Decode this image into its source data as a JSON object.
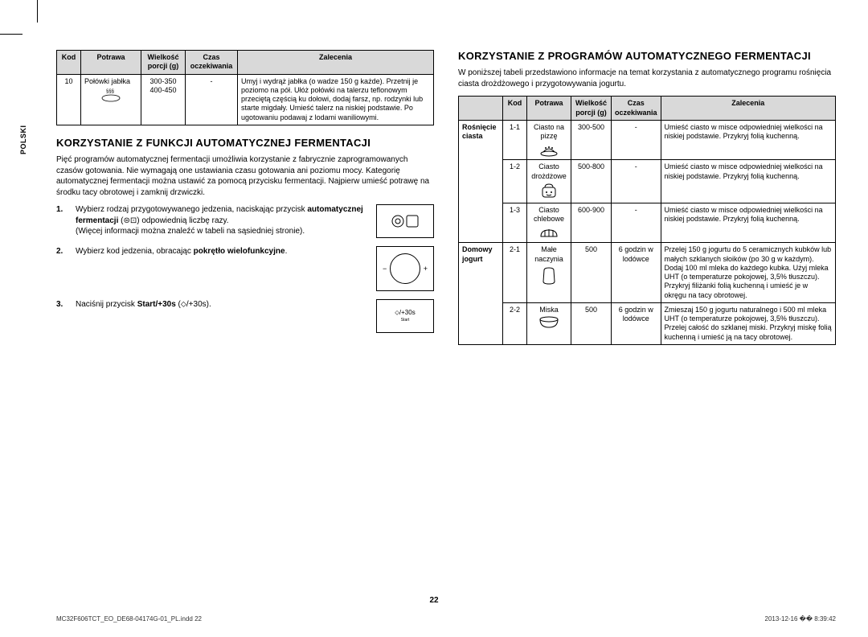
{
  "side_label": "POLSKI",
  "page_number": "22",
  "footer_left": "MC32F606TCT_EO_DE68-04174G-01_PL.indd   22",
  "footer_right": "2013-12-16   �� 8:39:42",
  "left": {
    "table1": {
      "headers": [
        "Kod",
        "Potrawa",
        "Wielkość porcji (g)",
        "Czas oczekiwania",
        "Zalecenia"
      ],
      "row": {
        "kod": "10",
        "potrawa": "Połówki jabłka",
        "porcja": "300-350\n400-450",
        "czas": "-",
        "zalecenia": "Umyj i wydrąż jabłka (o wadze 150 g każde). Przetnij je poziomo na pół. Ułóż połówki na talerzu teflonowym przeciętą częścią ku dołowi, dodaj farsz, np. rodzynki lub starte migdały. Umieść talerz na niskiej podstawie. Po ugotowaniu podawaj z lodami waniliowymi."
      }
    },
    "h2": "KORZYSTANIE Z FUNKCJI AUTOMATYCZNEJ FERMENTACJI",
    "intro": "Pięć programów automatycznej fermentacji umożliwia korzystanie z fabrycznie zaprogramowanych czasów gotowania. Nie wymagają one ustawiania czasu gotowania ani poziomu mocy. Kategorię automatycznej fermentacji można ustawić za pomocą przycisku fermentacji. Najpierw umieść potrawę na środku tacy obrotowej i zamknij drzwiczki.",
    "steps": [
      {
        "num": "1.",
        "txt_a": "Wybierz rodzaj przygotowywanego jedzenia, naciskając przycisk ",
        "txt_bold": "automatycznej fermentacji",
        "txt_b": " (⊜⊡) odpowiednią liczbę razy.",
        "txt_c": "(Więcej informacji można znaleźć w tabeli na sąsiedniej stronie)."
      },
      {
        "num": "2.",
        "txt_a": "Wybierz kod jedzenia, obracając ",
        "txt_bold": "pokrętło wielofunkcyjne",
        "txt_b": ".",
        "txt_c": ""
      },
      {
        "num": "3.",
        "txt_a": "Naciśnij przycisk ",
        "txt_bold": "Start/+30s",
        "txt_b": " (⬦/+30s).",
        "txt_c": ""
      }
    ],
    "icon3_label": "+30s",
    "icon3_sub": "Start"
  },
  "right": {
    "h2": "KORZYSTANIE Z PROGRAMÓW AUTOMATYCZNEGO FERMENTACJI",
    "intro": "W poniższej tabeli przedstawiono informacje na temat korzystania z automatycznego programu rośnięcia ciasta drożdżowego i przygotowywania jogurtu.",
    "headers": [
      "",
      "Kod",
      "Potrawa",
      "Wielkość porcji (g)",
      "Czas oczekiwania",
      "Zalecenia"
    ],
    "groups": [
      {
        "label": "Rośnięcie ciasta",
        "rows": [
          {
            "kod": "1-1",
            "potrawa": "Ciasto na pizzę",
            "porcja": "300-500",
            "czas": "-",
            "zal": "Umieść ciasto w misce odpowiedniej wielkości na niskiej podstawie. Przykryj folią kuchenną."
          },
          {
            "kod": "1-2",
            "potrawa": "Ciasto drożdżowe",
            "porcja": "500-800",
            "czas": "-",
            "zal": "Umieść ciasto w misce odpowiedniej wielkości na niskiej podstawie. Przykryj folią kuchenną."
          },
          {
            "kod": "1-3",
            "potrawa": "Ciasto chlebowe",
            "porcja": "600-900",
            "czas": "-",
            "zal": "Umieść ciasto w misce odpowiedniej wielkości na niskiej podstawie. Przykryj folią kuchenną."
          }
        ]
      },
      {
        "label": "Domowy jogurt",
        "rows": [
          {
            "kod": "2-1",
            "potrawa": "Małe naczynia",
            "porcja": "500",
            "czas": "6 godzin w lodówce",
            "zal": "Przelej 150 g jogurtu do 5 ceramicznych kubków lub małych szklanych słoików (po 30 g w każdym). Dodaj 100 ml mleka do każdego kubka. Użyj mleka UHT (o temperaturze pokojowej, 3,5% tłuszczu). Przykryj filiżanki folią kuchenną i umieść je w okręgu na tacy obrotowej."
          },
          {
            "kod": "2-2",
            "potrawa": "Miska",
            "porcja": "500",
            "czas": "6 godzin w lodówce",
            "zal": "Zmieszaj 150 g jogurtu naturalnego i 500 ml mleka UHT (o temperaturze pokojowej, 3,5% tłuszczu). Przelej całość do szklanej miski. Przykryj miskę folią kuchenną i umieść ją na tacy obrotowej."
          }
        ]
      }
    ]
  }
}
